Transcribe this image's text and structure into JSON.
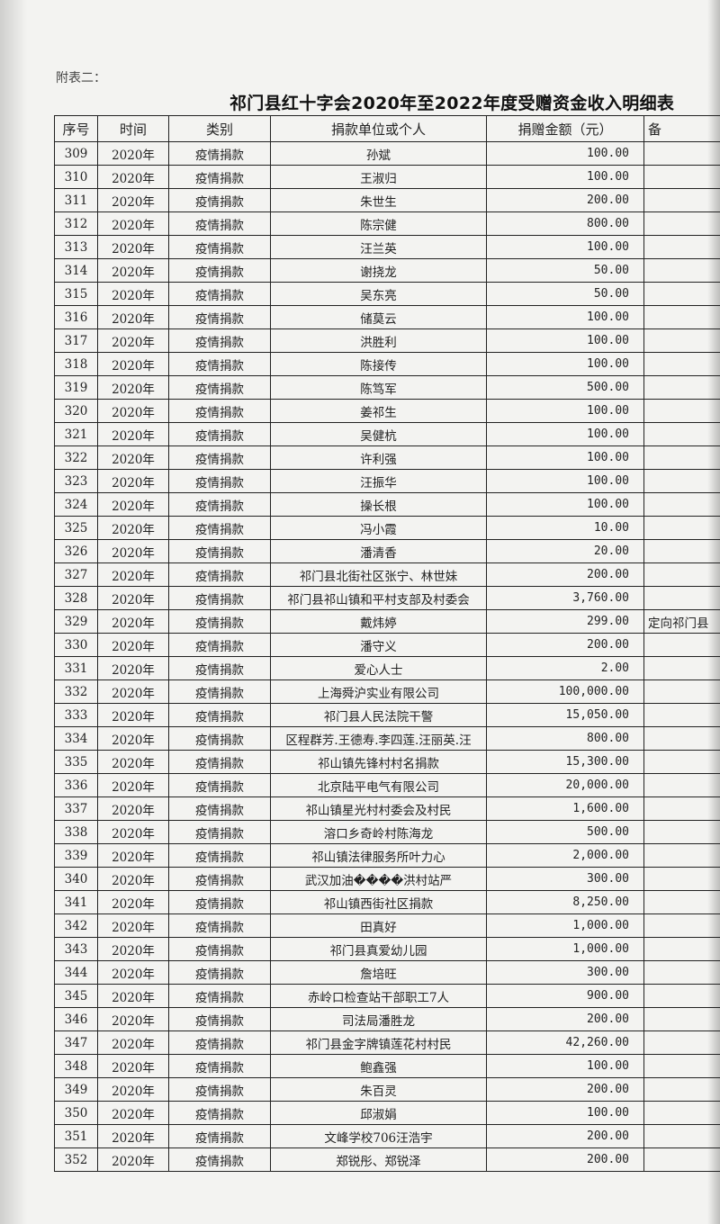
{
  "appendix_label": "附表二：",
  "title": "祁门县红十字会2020年至2022年度受赠资金收入明细表",
  "columns": [
    "序号",
    "时间",
    "类别",
    "捐款单位或个人",
    "捐赠金额（元）",
    "备"
  ],
  "rows": [
    {
      "no": "309",
      "year": "2020年",
      "type": "疫情捐款",
      "donor": "孙斌",
      "amount": "100.00",
      "note": ""
    },
    {
      "no": "310",
      "year": "2020年",
      "type": "疫情捐款",
      "donor": "王淑归",
      "amount": "100.00",
      "note": ""
    },
    {
      "no": "311",
      "year": "2020年",
      "type": "疫情捐款",
      "donor": "朱世生",
      "amount": "200.00",
      "note": ""
    },
    {
      "no": "312",
      "year": "2020年",
      "type": "疫情捐款",
      "donor": "陈宗健",
      "amount": "800.00",
      "note": ""
    },
    {
      "no": "313",
      "year": "2020年",
      "type": "疫情捐款",
      "donor": "汪兰英",
      "amount": "100.00",
      "note": ""
    },
    {
      "no": "314",
      "year": "2020年",
      "type": "疫情捐款",
      "donor": "谢挠龙",
      "amount": "50.00",
      "note": ""
    },
    {
      "no": "315",
      "year": "2020年",
      "type": "疫情捐款",
      "donor": "吴东亮",
      "amount": "50.00",
      "note": ""
    },
    {
      "no": "316",
      "year": "2020年",
      "type": "疫情捐款",
      "donor": "储莫云",
      "amount": "100.00",
      "note": ""
    },
    {
      "no": "317",
      "year": "2020年",
      "type": "疫情捐款",
      "donor": "洪胜利",
      "amount": "100.00",
      "note": ""
    },
    {
      "no": "318",
      "year": "2020年",
      "type": "疫情捐款",
      "donor": "陈接传",
      "amount": "100.00",
      "note": ""
    },
    {
      "no": "319",
      "year": "2020年",
      "type": "疫情捐款",
      "donor": "陈笃军",
      "amount": "500.00",
      "note": ""
    },
    {
      "no": "320",
      "year": "2020年",
      "type": "疫情捐款",
      "donor": "姜祁生",
      "amount": "100.00",
      "note": ""
    },
    {
      "no": "321",
      "year": "2020年",
      "type": "疫情捐款",
      "donor": "吴健杭",
      "amount": "100.00",
      "note": ""
    },
    {
      "no": "322",
      "year": "2020年",
      "type": "疫情捐款",
      "donor": "许利强",
      "amount": "100.00",
      "note": ""
    },
    {
      "no": "323",
      "year": "2020年",
      "type": "疫情捐款",
      "donor": "汪振华",
      "amount": "100.00",
      "note": ""
    },
    {
      "no": "324",
      "year": "2020年",
      "type": "疫情捐款",
      "donor": "操长根",
      "amount": "100.00",
      "note": ""
    },
    {
      "no": "325",
      "year": "2020年",
      "type": "疫情捐款",
      "donor": "冯小霞",
      "amount": "10.00",
      "note": ""
    },
    {
      "no": "326",
      "year": "2020年",
      "type": "疫情捐款",
      "donor": "潘清香",
      "amount": "20.00",
      "note": ""
    },
    {
      "no": "327",
      "year": "2020年",
      "type": "疫情捐款",
      "donor": "祁门县北街社区张宁、林世妹",
      "amount": "200.00",
      "note": ""
    },
    {
      "no": "328",
      "year": "2020年",
      "type": "疫情捐款",
      "donor": "祁门县祁山镇和平村支部及村委会",
      "amount": "3,760.00",
      "note": ""
    },
    {
      "no": "329",
      "year": "2020年",
      "type": "疫情捐款",
      "donor": "戴炜婷",
      "amount": "299.00",
      "note": "定向祁门县"
    },
    {
      "no": "330",
      "year": "2020年",
      "type": "疫情捐款",
      "donor": "潘守义",
      "amount": "200.00",
      "note": ""
    },
    {
      "no": "331",
      "year": "2020年",
      "type": "疫情捐款",
      "donor": "爱心人士",
      "amount": "2.00",
      "note": ""
    },
    {
      "no": "332",
      "year": "2020年",
      "type": "疫情捐款",
      "donor": "上海舜沪实业有限公司",
      "amount": "100,000.00",
      "note": ""
    },
    {
      "no": "333",
      "year": "2020年",
      "type": "疫情捐款",
      "donor": "祁门县人民法院干警",
      "amount": "15,050.00",
      "note": ""
    },
    {
      "no": "334",
      "year": "2020年",
      "type": "疫情捐款",
      "donor": "区程群芳.王德寿.李四莲.汪丽英.汪",
      "amount": "800.00",
      "note": ""
    },
    {
      "no": "335",
      "year": "2020年",
      "type": "疫情捐款",
      "donor": "祁山镇先锋村村名捐款",
      "amount": "15,300.00",
      "note": ""
    },
    {
      "no": "336",
      "year": "2020年",
      "type": "疫情捐款",
      "donor": "北京陆平电气有限公司",
      "amount": "20,000.00",
      "note": ""
    },
    {
      "no": "337",
      "year": "2020年",
      "type": "疫情捐款",
      "donor": "祁山镇星光村村委会及村民",
      "amount": "1,600.00",
      "note": ""
    },
    {
      "no": "338",
      "year": "2020年",
      "type": "疫情捐款",
      "donor": "溶口乡奇岭村陈海龙",
      "amount": "500.00",
      "note": ""
    },
    {
      "no": "339",
      "year": "2020年",
      "type": "疫情捐款",
      "donor": "祁山镇法律服务所叶力心",
      "amount": "2,000.00",
      "note": ""
    },
    {
      "no": "340",
      "year": "2020年",
      "type": "疫情捐款",
      "donor": "武汉加油����洪村站严",
      "amount": "300.00",
      "note": ""
    },
    {
      "no": "341",
      "year": "2020年",
      "type": "疫情捐款",
      "donor": "祁山镇西街社区捐款",
      "amount": "8,250.00",
      "note": ""
    },
    {
      "no": "342",
      "year": "2020年",
      "type": "疫情捐款",
      "donor": "田真好",
      "amount": "1,000.00",
      "note": ""
    },
    {
      "no": "343",
      "year": "2020年",
      "type": "疫情捐款",
      "donor": "祁门县真爱幼儿园",
      "amount": "1,000.00",
      "note": ""
    },
    {
      "no": "344",
      "year": "2020年",
      "type": "疫情捐款",
      "donor": "詹培旺",
      "amount": "300.00",
      "note": ""
    },
    {
      "no": "345",
      "year": "2020年",
      "type": "疫情捐款",
      "donor": "赤岭口检查站干部职工7人",
      "amount": "900.00",
      "note": ""
    },
    {
      "no": "346",
      "year": "2020年",
      "type": "疫情捐款",
      "donor": "司法局潘胜龙",
      "amount": "200.00",
      "note": ""
    },
    {
      "no": "347",
      "year": "2020年",
      "type": "疫情捐款",
      "donor": "祁门县金字牌镇莲花村村民",
      "amount": "42,260.00",
      "note": ""
    },
    {
      "no": "348",
      "year": "2020年",
      "type": "疫情捐款",
      "donor": "鲍鑫强",
      "amount": "100.00",
      "note": ""
    },
    {
      "no": "349",
      "year": "2020年",
      "type": "疫情捐款",
      "donor": "朱百灵",
      "amount": "200.00",
      "note": ""
    },
    {
      "no": "350",
      "year": "2020年",
      "type": "疫情捐款",
      "donor": "邱淑娟",
      "amount": "100.00",
      "note": ""
    },
    {
      "no": "351",
      "year": "2020年",
      "type": "疫情捐款",
      "donor": "文峰学校706汪浩宇",
      "amount": "200.00",
      "note": ""
    },
    {
      "no": "352",
      "year": "2020年",
      "type": "疫情捐款",
      "donor": "郑锐彤、郑锐泽",
      "amount": "200.00",
      "note": ""
    }
  ]
}
